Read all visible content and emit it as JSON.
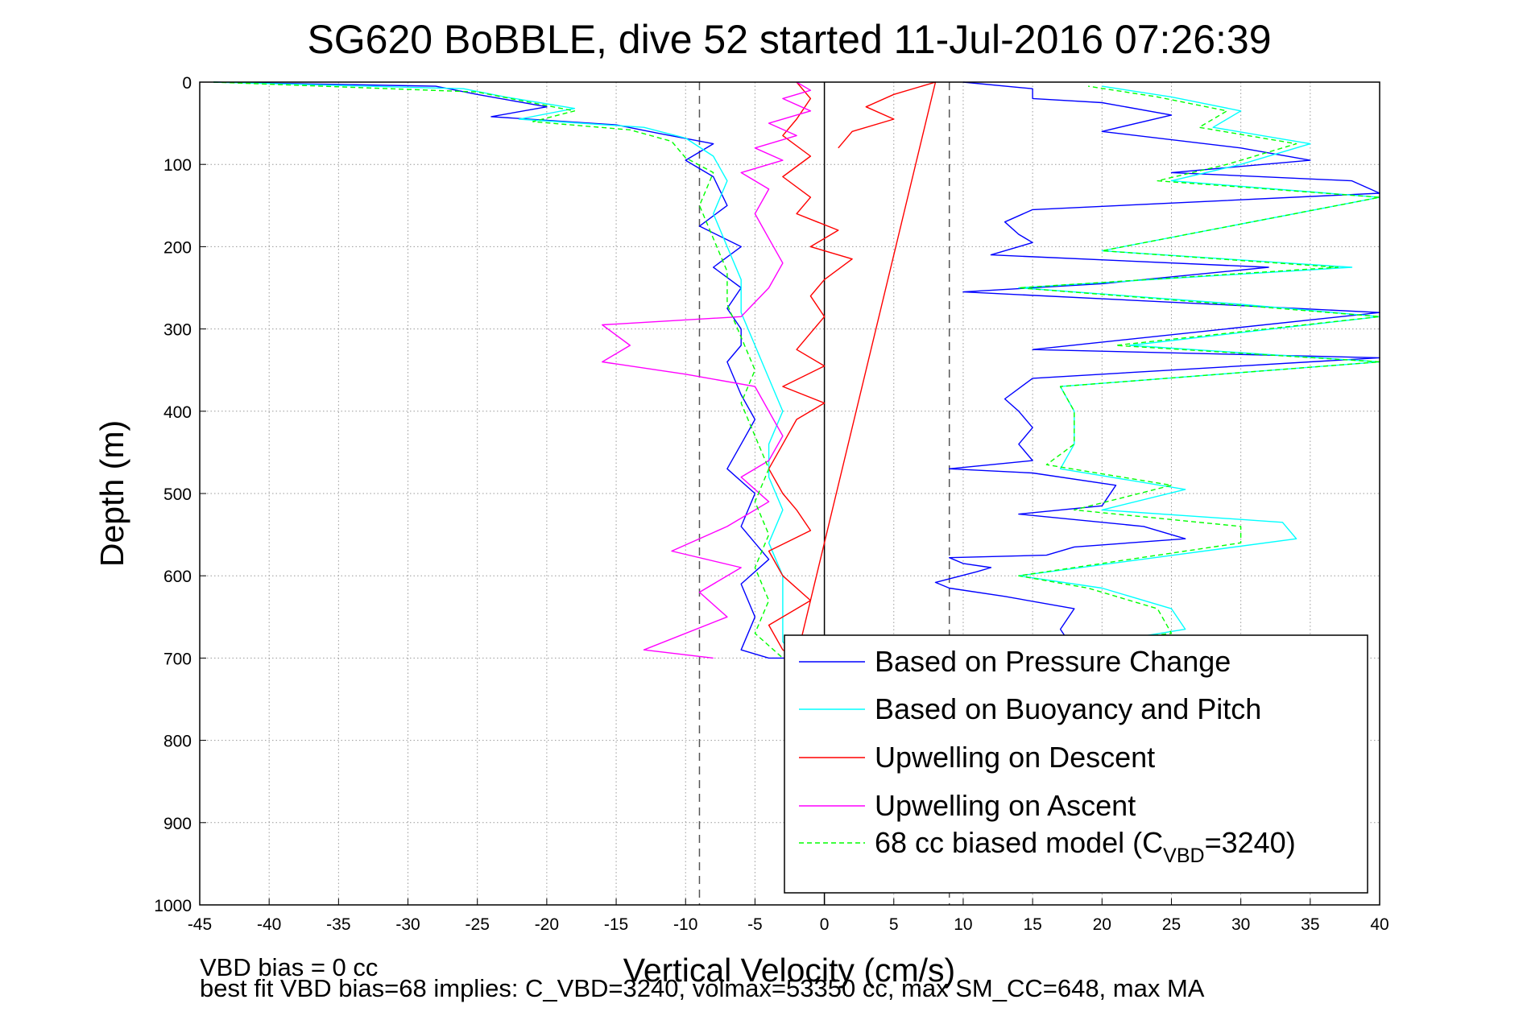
{
  "figure": {
    "title": "SG620 BoBBLE, dive 52 started 11-Jul-2016 07:26:39",
    "note_line1": "VBD bias = 0 cc",
    "note_line2": "best fit VBD bias=68 implies: C_VBD=3240, volmax=53350 cc, max SM_CC=648, max MA"
  },
  "legend": {
    "entries": [
      {
        "label": "Based on Pressure Change",
        "color": "#0000ff",
        "style": "solid"
      },
      {
        "label": "Based on Buoyancy and Pitch",
        "color": "#00ffff",
        "style": "solid"
      },
      {
        "label": "Upwelling on Descent",
        "color": "#ff0000",
        "style": "solid"
      },
      {
        "label": "Upwelling on Ascent",
        "color": "#ff00ff",
        "style": "solid"
      },
      {
        "label_prefix": "68 cc biased model (C",
        "label_sub": "VBD",
        "label_suffix": "=3240)",
        "color": "#00ff00",
        "style": "dashed"
      }
    ]
  },
  "chart_data": {
    "type": "line",
    "xlabel": "Vertical Velocity (cm/s)",
    "ylabel": "Depth (m)",
    "xlim": [
      -45,
      40
    ],
    "ylim": [
      0,
      1000
    ],
    "y_reversed": true,
    "x_ticks": [
      -45,
      -40,
      -35,
      -30,
      -25,
      -20,
      -15,
      -10,
      -5,
      0,
      5,
      10,
      15,
      20,
      25,
      30,
      35,
      40
    ],
    "y_ticks": [
      0,
      100,
      200,
      300,
      400,
      500,
      600,
      700,
      800,
      900,
      1000
    ],
    "grid": true,
    "legend_position": "lower-right",
    "reference_lines": [
      {
        "x": -9,
        "style": "dashed",
        "color": "#555555"
      },
      {
        "x": 0,
        "style": "solid",
        "color": "#000000"
      },
      {
        "x": 9,
        "style": "dashed",
        "color": "#555555"
      }
    ],
    "series": [
      {
        "name": "Based on Pressure Change",
        "color": "#0000ff",
        "dash": false,
        "points": [
          [
            -44,
            0
          ],
          [
            -28,
            5
          ],
          [
            -25,
            15
          ],
          [
            -20,
            30
          ],
          [
            -24,
            42
          ],
          [
            -15,
            52
          ],
          [
            -12,
            62
          ],
          [
            -8,
            75
          ],
          [
            -10,
            95
          ],
          [
            -8,
            115
          ],
          [
            -7,
            150
          ],
          [
            -9,
            175
          ],
          [
            -6,
            200
          ],
          [
            -8,
            225
          ],
          [
            -6,
            250
          ],
          [
            -7,
            275
          ],
          [
            -6,
            300
          ],
          [
            -6,
            320
          ],
          [
            -7,
            340
          ],
          [
            -6,
            380
          ],
          [
            -5,
            410
          ],
          [
            -6,
            440
          ],
          [
            -7,
            470
          ],
          [
            -5,
            500
          ],
          [
            -6,
            540
          ],
          [
            -4,
            580
          ],
          [
            -6,
            610
          ],
          [
            -5,
            650
          ],
          [
            -6,
            690
          ],
          [
            -4,
            700
          ],
          [
            3,
            700
          ],
          [
            10,
            698
          ],
          [
            18,
            690
          ],
          [
            17,
            665
          ],
          [
            18,
            640
          ],
          [
            13,
            625
          ],
          [
            9,
            615
          ],
          [
            8,
            608
          ],
          [
            11,
            595
          ],
          [
            12,
            590
          ],
          [
            10,
            585
          ],
          [
            9,
            578
          ],
          [
            16,
            575
          ],
          [
            18,
            565
          ],
          [
            26,
            555
          ],
          [
            23,
            540
          ],
          [
            14,
            525
          ],
          [
            20,
            515
          ],
          [
            21,
            490
          ],
          [
            15,
            475
          ],
          [
            9,
            470
          ],
          [
            15,
            460
          ],
          [
            14,
            440
          ],
          [
            15,
            420
          ],
          [
            14,
            400
          ],
          [
            13,
            385
          ],
          [
            15,
            360
          ],
          [
            40,
            335
          ],
          [
            15,
            325
          ],
          [
            40,
            280
          ],
          [
            28,
            270
          ],
          [
            10,
            255
          ],
          [
            20,
            245
          ],
          [
            32,
            225
          ],
          [
            12,
            210
          ],
          [
            15,
            195
          ],
          [
            14,
            185
          ],
          [
            13,
            170
          ],
          [
            15,
            155
          ],
          [
            40,
            135
          ],
          [
            38,
            120
          ],
          [
            25,
            110
          ],
          [
            35,
            95
          ],
          [
            30,
            80
          ],
          [
            20,
            60
          ],
          [
            25,
            40
          ],
          [
            20,
            25
          ],
          [
            15,
            20
          ],
          [
            15,
            8
          ],
          [
            10,
            0
          ]
        ]
      },
      {
        "name": "Based on Buoyancy and Pitch",
        "color": "#00ffff",
        "dash": false,
        "points": [
          [
            -44,
            0
          ],
          [
            -26,
            8
          ],
          [
            -23,
            18
          ],
          [
            -18,
            32
          ],
          [
            -22,
            45
          ],
          [
            -13,
            55
          ],
          [
            -10,
            68
          ],
          [
            -8,
            90
          ],
          [
            -7,
            120
          ],
          [
            -8,
            160
          ],
          [
            -7,
            200
          ],
          [
            -6,
            240
          ],
          [
            -6,
            280
          ],
          [
            -5,
            320
          ],
          [
            -4,
            360
          ],
          [
            -3,
            400
          ],
          [
            -4,
            440
          ],
          [
            -4,
            480
          ],
          [
            -3,
            520
          ],
          [
            -4,
            560
          ],
          [
            -3,
            600
          ],
          [
            -3,
            640
          ],
          [
            -3,
            680
          ],
          [
            -2,
            700
          ],
          [
            5,
            700
          ],
          [
            15,
            695
          ],
          [
            26,
            665
          ],
          [
            25,
            640
          ],
          [
            20,
            615
          ],
          [
            14,
            600
          ],
          [
            34,
            555
          ],
          [
            33,
            535
          ],
          [
            20,
            520
          ],
          [
            26,
            495
          ],
          [
            17,
            470
          ],
          [
            18,
            440
          ],
          [
            18,
            400
          ],
          [
            17,
            370
          ],
          [
            40,
            340
          ],
          [
            22,
            320
          ],
          [
            40,
            285
          ],
          [
            30,
            270
          ],
          [
            14,
            250
          ],
          [
            38,
            225
          ],
          [
            20,
            205
          ],
          [
            40,
            140
          ],
          [
            25,
            120
          ],
          [
            30,
            100
          ],
          [
            35,
            75
          ],
          [
            28,
            55
          ],
          [
            30,
            35
          ],
          [
            25,
            18
          ],
          [
            20,
            5
          ]
        ]
      },
      {
        "name": "Upwelling on Descent",
        "color": "#ff0000",
        "dash": false,
        "points": [
          [
            -2,
            0
          ],
          [
            -1,
            20
          ],
          [
            -2,
            45
          ],
          [
            -3,
            65
          ],
          [
            -1,
            90
          ],
          [
            -3,
            115
          ],
          [
            -1,
            140
          ],
          [
            -2,
            160
          ],
          [
            1,
            180
          ],
          [
            -1,
            200
          ],
          [
            2,
            215
          ],
          [
            0,
            240
          ],
          [
            -1,
            260
          ],
          [
            0,
            285
          ],
          [
            -1,
            305
          ],
          [
            -2,
            325
          ],
          [
            0,
            345
          ],
          [
            -3,
            370
          ],
          [
            0,
            390
          ],
          [
            -2,
            410
          ],
          [
            -3,
            440
          ],
          [
            -4,
            470
          ],
          [
            -3,
            500
          ],
          [
            -2,
            520
          ],
          [
            -1,
            545
          ],
          [
            -4,
            570
          ],
          [
            -3,
            600
          ],
          [
            -1,
            630
          ],
          [
            -4,
            660
          ],
          [
            -3,
            690
          ],
          [
            -2,
            700
          ],
          [
            8,
            0
          ],
          [
            5,
            15
          ],
          [
            3,
            30
          ],
          [
            5,
            45
          ],
          [
            2,
            60
          ],
          [
            1,
            80
          ]
        ]
      },
      {
        "name": "Upwelling on Ascent",
        "color": "#ff00ff",
        "dash": false,
        "points": [
          [
            -2,
            0
          ],
          [
            -1,
            10
          ],
          [
            -3,
            20
          ],
          [
            -1,
            35
          ],
          [
            -4,
            50
          ],
          [
            -2,
            65
          ],
          [
            -5,
            80
          ],
          [
            -3,
            95
          ],
          [
            -6,
            110
          ],
          [
            -4,
            130
          ],
          [
            -5,
            160
          ],
          [
            -4,
            190
          ],
          [
            -3,
            220
          ],
          [
            -4,
            250
          ],
          [
            -6,
            285
          ],
          [
            -16,
            295
          ],
          [
            -14,
            320
          ],
          [
            -16,
            340
          ],
          [
            -10,
            355
          ],
          [
            -5,
            370
          ],
          [
            -4,
            400
          ],
          [
            -3,
            430
          ],
          [
            -4,
            460
          ],
          [
            -6,
            480
          ],
          [
            -4,
            510
          ],
          [
            -7,
            540
          ],
          [
            -11,
            570
          ],
          [
            -6,
            590
          ],
          [
            -9,
            620
          ],
          [
            -7,
            650
          ],
          [
            -13,
            690
          ],
          [
            -8,
            700
          ]
        ]
      },
      {
        "name": "68 cc biased model (C_VBD=3240)",
        "color": "#00ff00",
        "dash": true,
        "points": [
          [
            -44,
            0
          ],
          [
            -25,
            12
          ],
          [
            -22,
            22
          ],
          [
            -18,
            35
          ],
          [
            -21,
            48
          ],
          [
            -14,
            58
          ],
          [
            -11,
            72
          ],
          [
            -10,
            92
          ],
          [
            -8,
            110
          ],
          [
            -9,
            150
          ],
          [
            -8,
            190
          ],
          [
            -7,
            230
          ],
          [
            -7,
            270
          ],
          [
            -6,
            310
          ],
          [
            -5,
            350
          ],
          [
            -6,
            390
          ],
          [
            -5,
            430
          ],
          [
            -4,
            470
          ],
          [
            -5,
            510
          ],
          [
            -4,
            550
          ],
          [
            -5,
            590
          ],
          [
            -4,
            630
          ],
          [
            -5,
            670
          ],
          [
            -3,
            700
          ],
          [
            4,
            700
          ],
          [
            14,
            692
          ],
          [
            25,
            670
          ],
          [
            24,
            640
          ],
          [
            19,
            615
          ],
          [
            14,
            600
          ],
          [
            30,
            560
          ],
          [
            30,
            540
          ],
          [
            18,
            520
          ],
          [
            25,
            490
          ],
          [
            16,
            465
          ],
          [
            18,
            440
          ],
          [
            18,
            400
          ],
          [
            17,
            370
          ],
          [
            40,
            340
          ],
          [
            21,
            320
          ],
          [
            40,
            285
          ],
          [
            29,
            270
          ],
          [
            14,
            250
          ],
          [
            37,
            225
          ],
          [
            20,
            205
          ],
          [
            40,
            140
          ],
          [
            24,
            120
          ],
          [
            29,
            100
          ],
          [
            34,
            75
          ],
          [
            27,
            55
          ],
          [
            29,
            35
          ],
          [
            24,
            18
          ],
          [
            19,
            5
          ]
        ]
      }
    ]
  }
}
